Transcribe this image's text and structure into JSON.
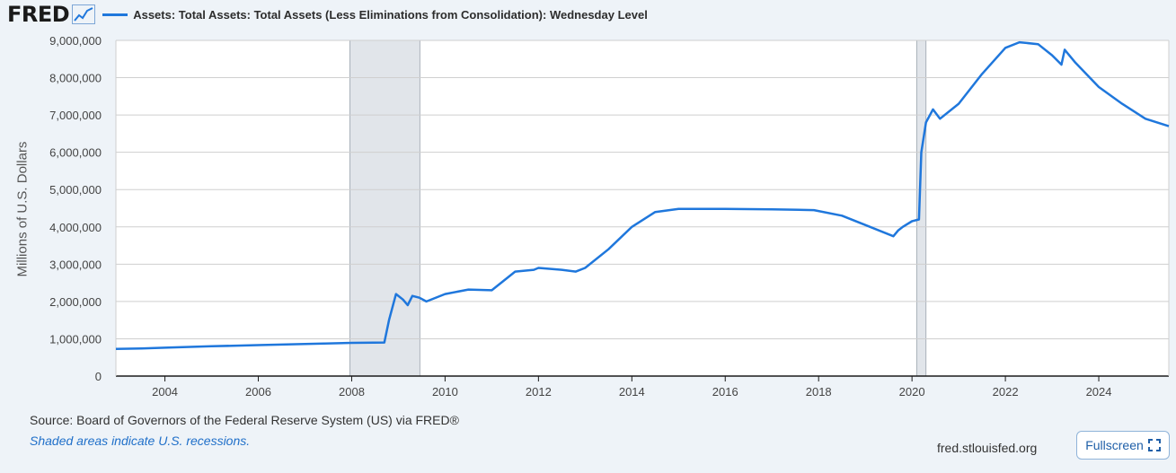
{
  "header": {
    "logo": "FRED",
    "legend_label": "Assets: Total Assets: Total Assets (Less Eliminations from Consolidation): Wednesday Level",
    "series_color": "#1f77dc"
  },
  "footer": {
    "source": "Source: Board of Governors of the Federal Reserve System (US) via FRED®",
    "note": "Shaded areas indicate U.S. recessions.",
    "site": "fred.stlouisfed.org",
    "fullscreen_label": "Fullscreen"
  },
  "chart_data": {
    "type": "line",
    "title": "",
    "xlabel": "",
    "ylabel": "Millions of U.S. Dollars",
    "xlim": [
      2002.95,
      2025.5
    ],
    "ylim": [
      0,
      9000000
    ],
    "yticks": [
      0,
      1000000,
      2000000,
      3000000,
      4000000,
      5000000,
      6000000,
      7000000,
      8000000,
      9000000
    ],
    "ytick_labels": [
      "0",
      "1,000,000",
      "2,000,000",
      "3,000,000",
      "4,000,000",
      "5,000,000",
      "6,000,000",
      "7,000,000",
      "8,000,000",
      "9,000,000"
    ],
    "xticks": [
      2004,
      2006,
      2008,
      2010,
      2012,
      2014,
      2016,
      2018,
      2020,
      2022,
      2024
    ],
    "xtick_labels": [
      "2004",
      "2006",
      "2008",
      "2010",
      "2012",
      "2014",
      "2016",
      "2018",
      "2020",
      "2022",
      "2024"
    ],
    "grid": true,
    "recessions": [
      [
        2007.96,
        2009.46
      ],
      [
        2020.1,
        2020.3
      ]
    ],
    "series": [
      {
        "name": "Assets: Total Assets: Total Assets (Less Eliminations from Consolidation): Wednesday Level",
        "color": "#1f77dc",
        "points": [
          [
            2002.95,
            730000
          ],
          [
            2003.5,
            740000
          ],
          [
            2004.0,
            760000
          ],
          [
            2005.0,
            800000
          ],
          [
            2006.0,
            830000
          ],
          [
            2007.0,
            860000
          ],
          [
            2008.0,
            890000
          ],
          [
            2008.7,
            900000
          ],
          [
            2008.8,
            1500000
          ],
          [
            2008.95,
            2200000
          ],
          [
            2009.1,
            2050000
          ],
          [
            2009.2,
            1900000
          ],
          [
            2009.3,
            2150000
          ],
          [
            2009.45,
            2100000
          ],
          [
            2009.6,
            2000000
          ],
          [
            2010.0,
            2200000
          ],
          [
            2010.5,
            2320000
          ],
          [
            2011.0,
            2300000
          ],
          [
            2011.5,
            2800000
          ],
          [
            2011.9,
            2850000
          ],
          [
            2012.0,
            2900000
          ],
          [
            2012.5,
            2850000
          ],
          [
            2012.8,
            2800000
          ],
          [
            2013.0,
            2900000
          ],
          [
            2013.5,
            3400000
          ],
          [
            2014.0,
            4000000
          ],
          [
            2014.5,
            4400000
          ],
          [
            2015.0,
            4480000
          ],
          [
            2016.0,
            4480000
          ],
          [
            2017.0,
            4470000
          ],
          [
            2017.9,
            4450000
          ],
          [
            2018.5,
            4300000
          ],
          [
            2019.0,
            4050000
          ],
          [
            2019.6,
            3750000
          ],
          [
            2019.7,
            3900000
          ],
          [
            2019.8,
            4000000
          ],
          [
            2020.0,
            4150000
          ],
          [
            2020.15,
            4200000
          ],
          [
            2020.2,
            6000000
          ],
          [
            2020.3,
            6800000
          ],
          [
            2020.45,
            7150000
          ],
          [
            2020.6,
            6900000
          ],
          [
            2021.0,
            7300000
          ],
          [
            2021.5,
            8100000
          ],
          [
            2022.0,
            8800000
          ],
          [
            2022.3,
            8950000
          ],
          [
            2022.7,
            8900000
          ],
          [
            2023.0,
            8600000
          ],
          [
            2023.2,
            8350000
          ],
          [
            2023.27,
            8750000
          ],
          [
            2023.5,
            8400000
          ],
          [
            2024.0,
            7750000
          ],
          [
            2024.5,
            7300000
          ],
          [
            2025.0,
            6900000
          ],
          [
            2025.5,
            6700000
          ]
        ]
      }
    ]
  }
}
